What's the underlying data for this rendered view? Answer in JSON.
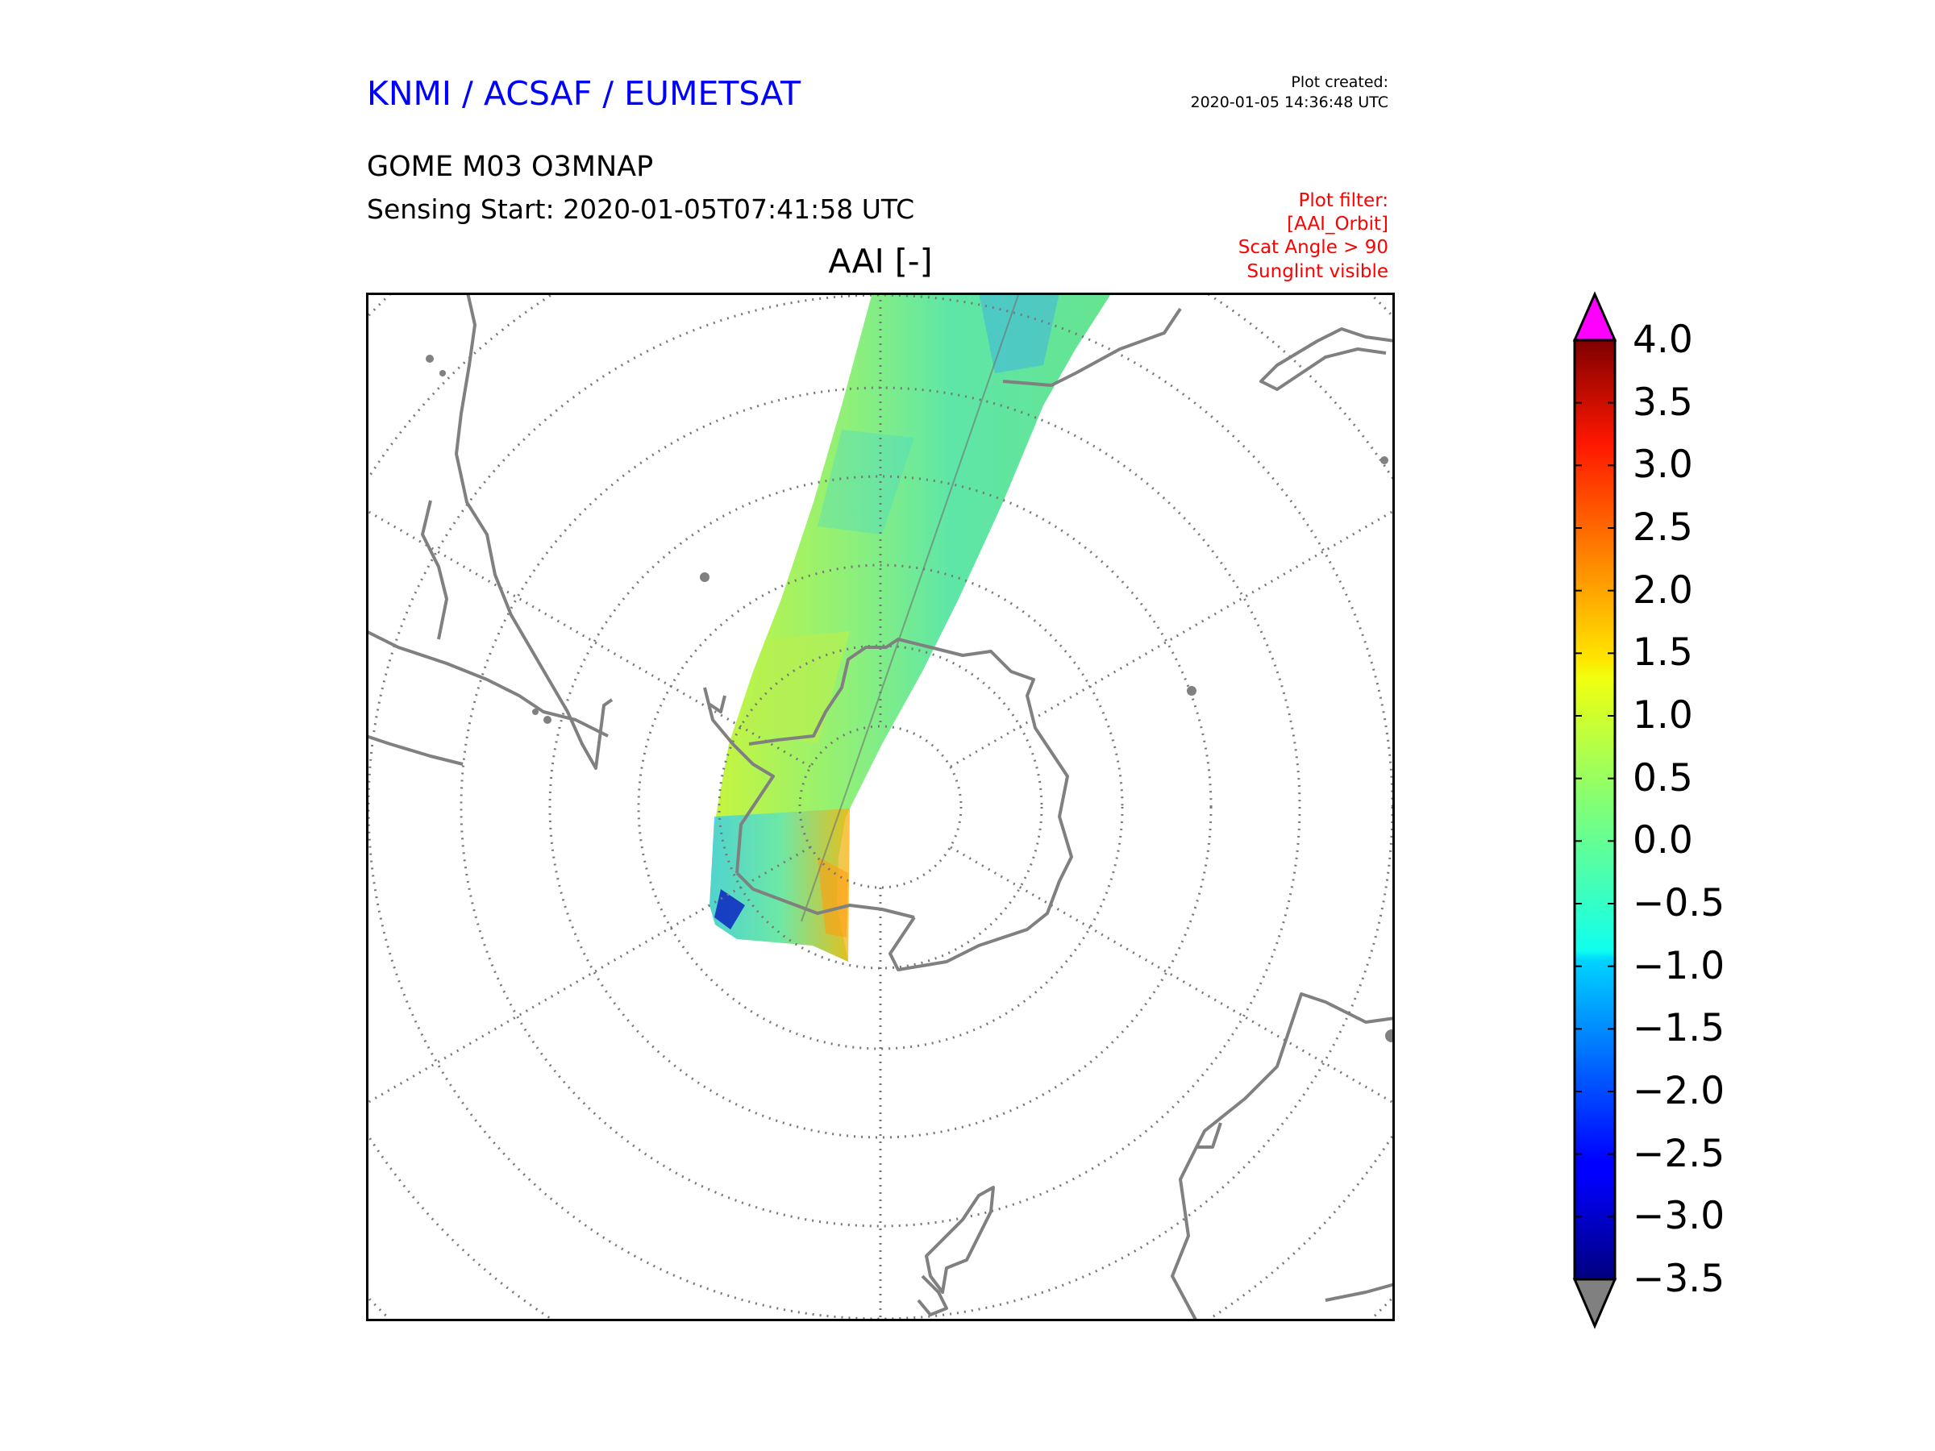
{
  "header": {
    "brand": "KNMI / ACSAF / EUMETSAT",
    "plot_created_label": "Plot created:",
    "plot_created_value": "2020-01-05 14:36:48 UTC",
    "product": "GOME M03 O3MNAP",
    "sensing_start": "Sensing Start: 2020-01-05T07:41:58 UTC",
    "filter_lines": [
      "Plot filter:",
      "[AAI_Orbit]",
      "Scat Angle > 90",
      "Sunglint visible"
    ]
  },
  "map": {
    "title": "AAI [-]",
    "projection": "south-polar-stereographic",
    "graticule": "dotted",
    "coastline_color": "#808080"
  },
  "colorbar": {
    "min": -3.5,
    "max": 4.0,
    "ticks": [
      "4.0",
      "3.5",
      "3.0",
      "2.5",
      "2.0",
      "1.5",
      "1.0",
      "0.5",
      "0.0",
      "−0.5",
      "−1.0",
      "−1.5",
      "−2.0",
      "−2.5",
      "−3.0",
      "−3.5"
    ],
    "over_color": "#ff00ff",
    "under_color": "#808080",
    "colormap": "jet"
  },
  "colors": {
    "brand": "#0000ff",
    "filter": "#ff0000",
    "text": "#000000"
  }
}
